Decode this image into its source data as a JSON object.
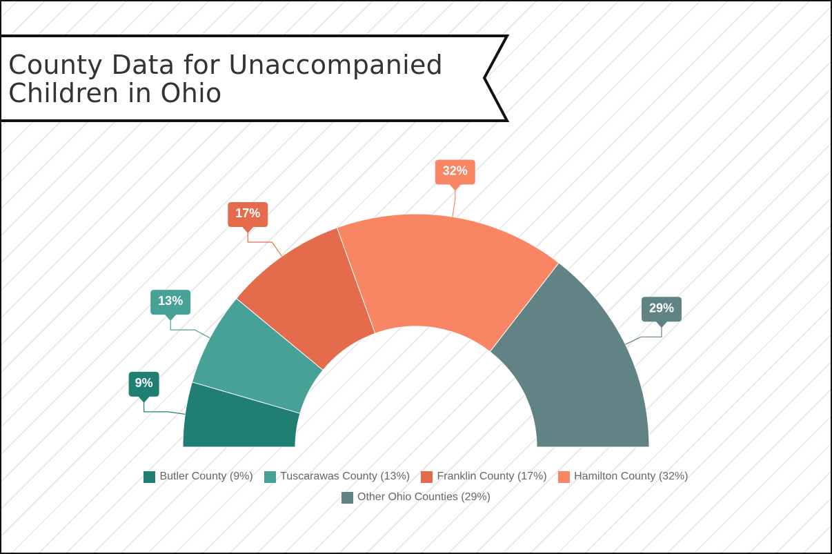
{
  "title_lines": [
    "County Data for Unaccompanied",
    "Children in Ohio"
  ],
  "chart_data": {
    "type": "pie",
    "variant": "semi-donut",
    "categories": [
      "Butler County",
      "Tuscarawas County",
      "Franklin County",
      "Hamilton County",
      "Other Ohio Counties"
    ],
    "values": [
      9,
      13,
      17,
      32,
      29
    ],
    "data_labels": [
      "9%",
      "13%",
      "17%",
      "32%",
      "29%"
    ],
    "legend_labels": [
      "Butler County (9%)",
      "Tuscarawas County (13%)",
      "Franklin County (17%)",
      "Hamilton County (32%)",
      "Other Ohio Counties (29%)"
    ],
    "colors": [
      "#1f7f72",
      "#48a197",
      "#e46b4c",
      "#f88665",
      "#628386"
    ],
    "legend_placement": "bottom"
  }
}
